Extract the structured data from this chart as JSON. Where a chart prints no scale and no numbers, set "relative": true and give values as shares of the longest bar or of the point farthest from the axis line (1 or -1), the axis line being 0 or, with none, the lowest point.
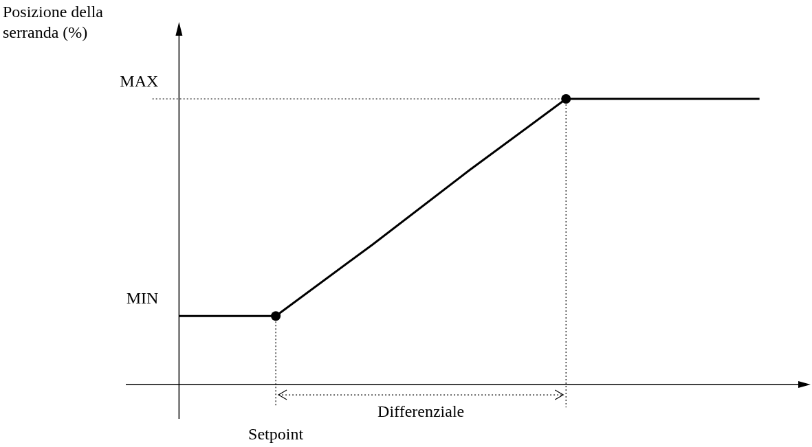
{
  "chart_data": {
    "type": "line",
    "ylabel": "Posizione della serranda (%)",
    "relative": true,
    "categories": [
      null,
      null,
      null,
      null,
      null,
      null,
      null
    ],
    "series": [
      {
        "color": "#000000",
        "values": [
          0.24,
          0.24,
          0.49,
          0.75,
          1,
          1,
          1
        ]
      }
    ],
    "ref_lines": [
      {
        "axis": "y",
        "value": 1,
        "line_style": "dotted"
      }
    ],
    "annotations": [
      "Differenziale",
      "Setpoint",
      "MIN",
      "MAX"
    ],
    "line_style": "solid",
    "grid": false
  }
}
